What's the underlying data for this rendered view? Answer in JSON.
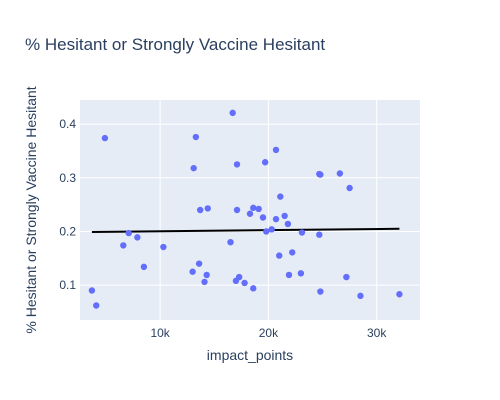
{
  "chart_data": {
    "type": "scatter",
    "title": "% Hesitant or Strongly Vaccine Hesitant",
    "xlabel": "impact_points",
    "ylabel": "% Hesitant or Strongly Vaccine Hesitant",
    "xlim": [
      2600,
      34000
    ],
    "ylim": [
      0.035,
      0.445
    ],
    "x_ticks": [
      {
        "value": 10000,
        "label": "10k"
      },
      {
        "value": 20000,
        "label": "20k"
      },
      {
        "value": 30000,
        "label": "30k"
      }
    ],
    "y_ticks": [
      {
        "value": 0.1,
        "label": "0.1"
      },
      {
        "value": 0.2,
        "label": "0.2"
      },
      {
        "value": 0.3,
        "label": "0.3"
      },
      {
        "value": 0.4,
        "label": "0.4"
      }
    ],
    "grid": true,
    "colors": {
      "marker": "#636efa",
      "trendline": "#000000",
      "plot_bg": "#e5ecf6",
      "grid": "#ffffff",
      "text": "#2a3f5f"
    },
    "series": [
      {
        "type": "scatter",
        "points": [
          [
            3700,
            0.09
          ],
          [
            4100,
            0.062
          ],
          [
            4900,
            0.374
          ],
          [
            6600,
            0.174
          ],
          [
            7100,
            0.197
          ],
          [
            7900,
            0.189
          ],
          [
            8500,
            0.134
          ],
          [
            10300,
            0.171
          ],
          [
            13000,
            0.125
          ],
          [
            13100,
            0.318
          ],
          [
            13300,
            0.376
          ],
          [
            13600,
            0.14
          ],
          [
            13700,
            0.24
          ],
          [
            14100,
            0.106
          ],
          [
            14300,
            0.119
          ],
          [
            14400,
            0.243
          ],
          [
            16500,
            0.18
          ],
          [
            16700,
            0.421
          ],
          [
            17000,
            0.108
          ],
          [
            17100,
            0.24
          ],
          [
            17100,
            0.325
          ],
          [
            17300,
            0.115
          ],
          [
            17800,
            0.104
          ],
          [
            18300,
            0.233
          ],
          [
            18600,
            0.094
          ],
          [
            18600,
            0.244
          ],
          [
            19100,
            0.242
          ],
          [
            19500,
            0.226
          ],
          [
            19700,
            0.329
          ],
          [
            19800,
            0.2
          ],
          [
            20300,
            0.204
          ],
          [
            20700,
            0.352
          ],
          [
            20700,
            0.223
          ],
          [
            21000,
            0.155
          ],
          [
            21100,
            0.265
          ],
          [
            21500,
            0.229
          ],
          [
            21800,
            0.214
          ],
          [
            21900,
            0.119
          ],
          [
            22200,
            0.161
          ],
          [
            23000,
            0.122
          ],
          [
            23100,
            0.198
          ],
          [
            24700,
            0.307
          ],
          [
            24700,
            0.194
          ],
          [
            24800,
            0.088
          ],
          [
            24800,
            0.306
          ],
          [
            26600,
            0.308
          ],
          [
            27200,
            0.115
          ],
          [
            27500,
            0.281
          ],
          [
            28500,
            0.08
          ],
          [
            32100,
            0.083
          ]
        ]
      },
      {
        "type": "line",
        "points": [
          [
            3700,
            0.199
          ],
          [
            32100,
            0.205
          ]
        ]
      }
    ]
  }
}
